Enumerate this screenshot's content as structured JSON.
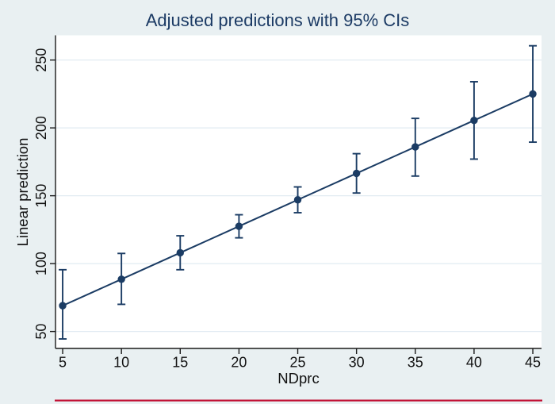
{
  "title": "Adjusted predictions with 95% CIs",
  "colors": {
    "background": "#e9f0f2",
    "plot_background": "#ffffff",
    "grid": "#e1ebf2",
    "axis": "#1a1a1a",
    "text": "#111111",
    "title_text": "#1b3a64",
    "series_navy": "#1b3c64",
    "footer_rule_red": "#c10e32"
  },
  "chart_data": {
    "type": "line",
    "title": "Adjusted predictions with 95% CIs",
    "xlabel": "NDprc",
    "ylabel": "Linear prediction",
    "x": [
      5,
      10,
      15,
      20,
      25,
      30,
      35,
      40,
      45
    ],
    "series": [
      {
        "name": "Adjusted prediction",
        "values": [
          69,
          88.5,
          108,
          127.5,
          147,
          166.5,
          186,
          205.5,
          225
        ]
      }
    ],
    "ci_low": [
      44.5,
      70,
      95.5,
      119,
      137.5,
      152,
      164.5,
      177,
      189.5
    ],
    "ci_high": [
      95.5,
      107.5,
      120.5,
      136,
      156.5,
      181,
      207,
      234,
      260.5
    ],
    "ci_level": "95%",
    "xticks": [
      5,
      10,
      15,
      20,
      25,
      30,
      35,
      40,
      45
    ],
    "yticks": [
      50,
      100,
      150,
      200,
      250
    ],
    "xlim": [
      4.39,
      45.74
    ],
    "ylim": [
      37.5,
      268.2
    ],
    "grid": "horizontal",
    "legend": "none",
    "marker": "filled-circle",
    "error_bars": true
  }
}
